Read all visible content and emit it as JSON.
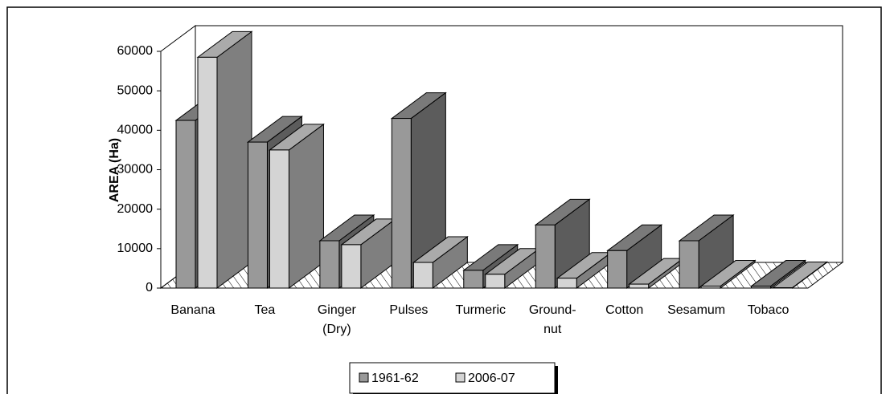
{
  "chart_data": {
    "type": "bar3d",
    "y_label": "AREA (Ha)",
    "categories": [
      [
        "Banana"
      ],
      [
        "Tea"
      ],
      [
        "Ginger",
        "(Dry)"
      ],
      [
        "Pulses"
      ],
      [
        "Turmeric"
      ],
      [
        "Ground-",
        "nut"
      ],
      [
        "Cotton"
      ],
      [
        "Sesamum"
      ],
      [
        "Tobaco"
      ]
    ],
    "series": [
      {
        "name": "1961-62",
        "color": "#999999",
        "values": [
          42500,
          37000,
          12000,
          43000,
          4500,
          16000,
          9500,
          12000,
          500
        ]
      },
      {
        "name": "2006-07",
        "color": "#d4d4d4",
        "values": [
          58500,
          35000,
          11000,
          6500,
          3500,
          2500,
          1000,
          500,
          100
        ]
      }
    ],
    "ylim": [
      0,
      60000
    ],
    "yticks": [
      0,
      10000,
      20000,
      30000,
      40000,
      50000,
      60000
    ],
    "grid": false,
    "legend": "bottom"
  }
}
